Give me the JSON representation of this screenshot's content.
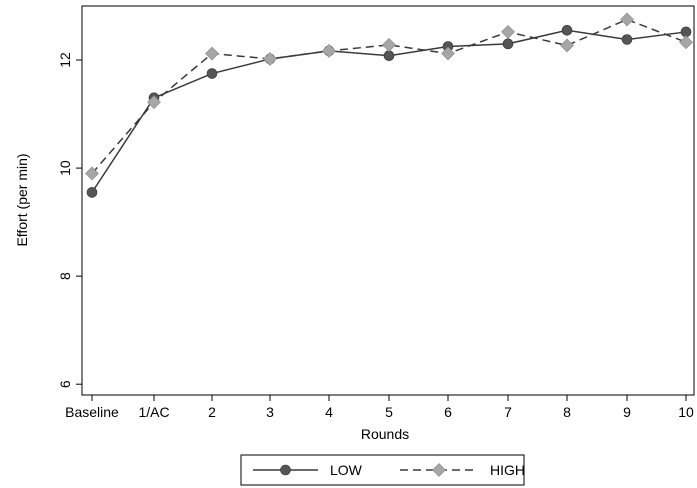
{
  "chart_data": {
    "type": "line",
    "title": "",
    "xlabel": "Rounds",
    "ylabel": "Effort (per min)",
    "categories": [
      "Baseline",
      "1/AC",
      "2",
      "3",
      "4",
      "5",
      "6",
      "7",
      "8",
      "9",
      "10"
    ],
    "x_tick_labels": [
      "Baseline",
      "1/AC",
      "2",
      "3",
      "4",
      "5",
      "6",
      "7",
      "8",
      "9",
      "10"
    ],
    "y_ticks": [
      6,
      8,
      10,
      12
    ],
    "ylim": [
      5.8,
      13
    ],
    "grid": false,
    "legend_position": "bottom",
    "series": [
      {
        "name": "LOW",
        "line_style": "solid",
        "marker": "circle",
        "color": "#3a3a3a",
        "marker_color": "#555555",
        "values": [
          9.55,
          11.3,
          11.75,
          12.02,
          12.17,
          12.08,
          12.25,
          12.3,
          12.55,
          12.38,
          12.52
        ]
      },
      {
        "name": "HIGH",
        "line_style": "dashed",
        "marker": "diamond",
        "color": "#3a3a3a",
        "marker_color": "#a6a6a6",
        "values": [
          9.9,
          11.22,
          12.12,
          12.02,
          12.17,
          12.28,
          12.12,
          12.52,
          12.27,
          12.75,
          12.33
        ]
      }
    ]
  }
}
